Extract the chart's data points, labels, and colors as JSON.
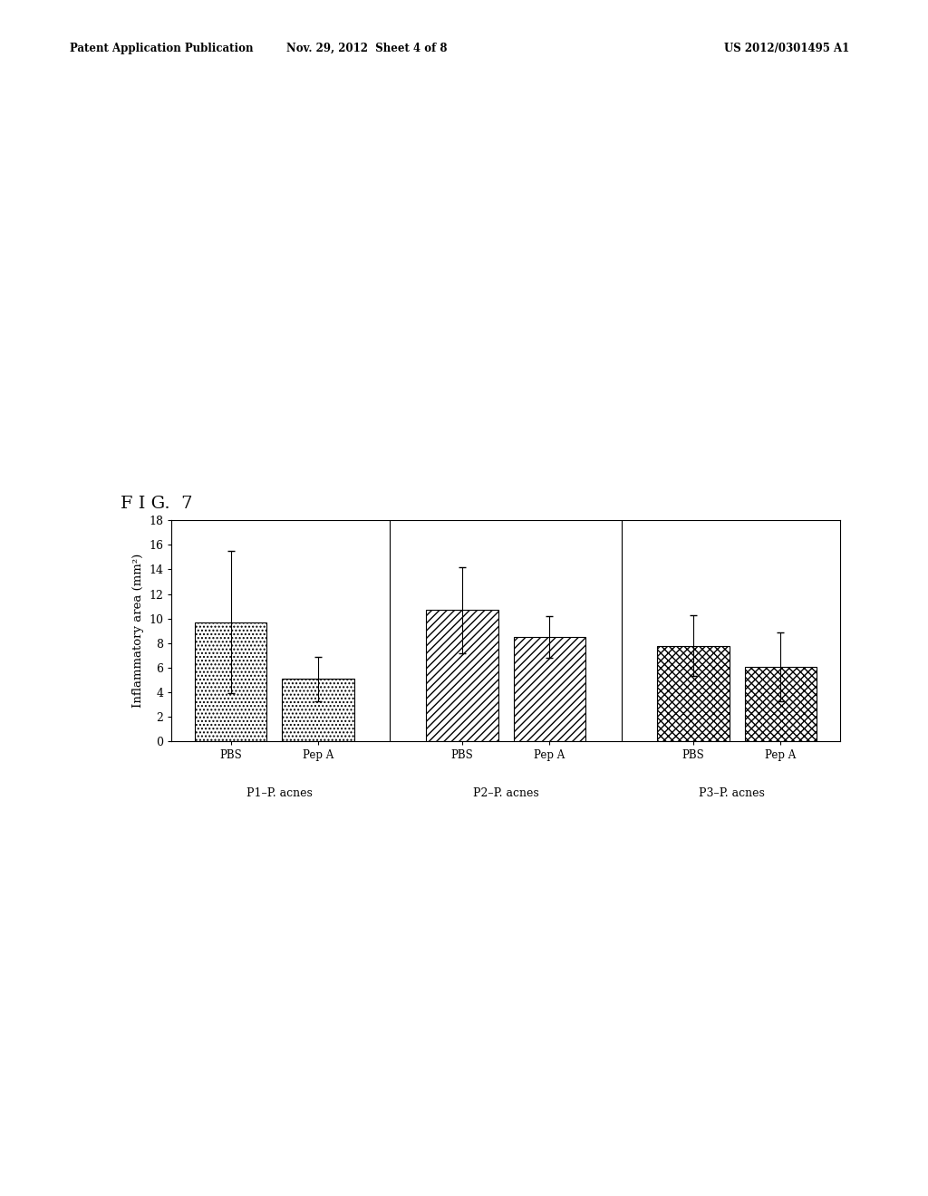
{
  "title": "F I G.  7",
  "ylabel": "Inflammatory area (mm²)",
  "ylim": [
    0,
    18
  ],
  "yticks": [
    0,
    2,
    4,
    6,
    8,
    10,
    12,
    14,
    16,
    18
  ],
  "groups": [
    "P1–P. acnes",
    "P2–P. acnes",
    "P3–P. acnes"
  ],
  "bar_labels": [
    "PBS",
    "Pep A"
  ],
  "values": [
    [
      9.7,
      5.1
    ],
    [
      10.7,
      8.5
    ],
    [
      7.8,
      6.1
    ]
  ],
  "errors": [
    [
      5.8,
      1.8
    ],
    [
      3.5,
      1.7
    ],
    [
      2.5,
      2.8
    ]
  ],
  "header_left": "Patent Application Publication",
  "header_center": "Nov. 29, 2012  Sheet 4 of 8",
  "header_right": "US 2012/0301495 A1",
  "background_color": "#ffffff",
  "bar_edge_color": "#000000",
  "text_color": "#000000"
}
